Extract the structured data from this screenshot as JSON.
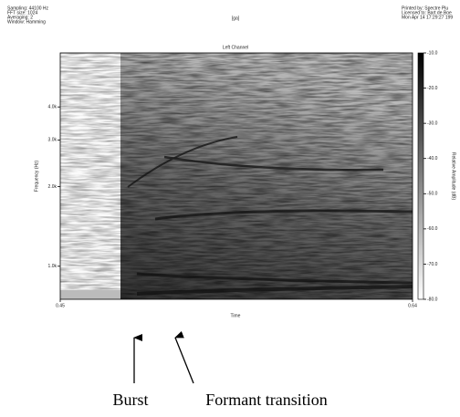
{
  "header": {
    "left": [
      "Sampling:  44100 Hz",
      "FFT size:  1024",
      "Averaging:  2",
      "Window:  Hamming"
    ],
    "center": "[ga]",
    "right": [
      "Printed by: Spectre Plu",
      "Licensed to: Bart de Boe",
      "Mon Apr 14 17:29:27 199"
    ]
  },
  "chart_data": {
    "type": "spectrogram",
    "title": "Left Channel",
    "x_label": "Time",
    "y_label": "Frequency (Hz)",
    "xlim": [
      0.45,
      0.64
    ],
    "xticks": [
      0.45,
      0.64
    ],
    "ylim": [
      750,
      6400
    ],
    "log_y": true,
    "yticks": [
      {
        "value": 1000,
        "label": "1.0k"
      },
      {
        "value": 2000,
        "label": "2.0k"
      },
      {
        "value": 3000,
        "label": "3.0k"
      },
      {
        "value": 4000,
        "label": "4.0k"
      }
    ],
    "colorbar_label": "Relative Amplitude (dB)",
    "colorbar_lim": [
      -80,
      -10
    ],
    "colorbar_ticks": [
      {
        "value": -10,
        "label": "-10.0"
      },
      {
        "value": -20,
        "label": "-20.0"
      },
      {
        "value": -30,
        "label": "-30.0"
      },
      {
        "value": -40,
        "label": "-40.0"
      },
      {
        "value": -50,
        "label": "-50.0"
      },
      {
        "value": -60,
        "label": "-60.0"
      },
      {
        "value": -70,
        "label": "-70.0"
      },
      {
        "value": -80,
        "label": "-80.0"
      }
    ]
  },
  "annotations": [
    "Burst",
    "Formant transition"
  ]
}
